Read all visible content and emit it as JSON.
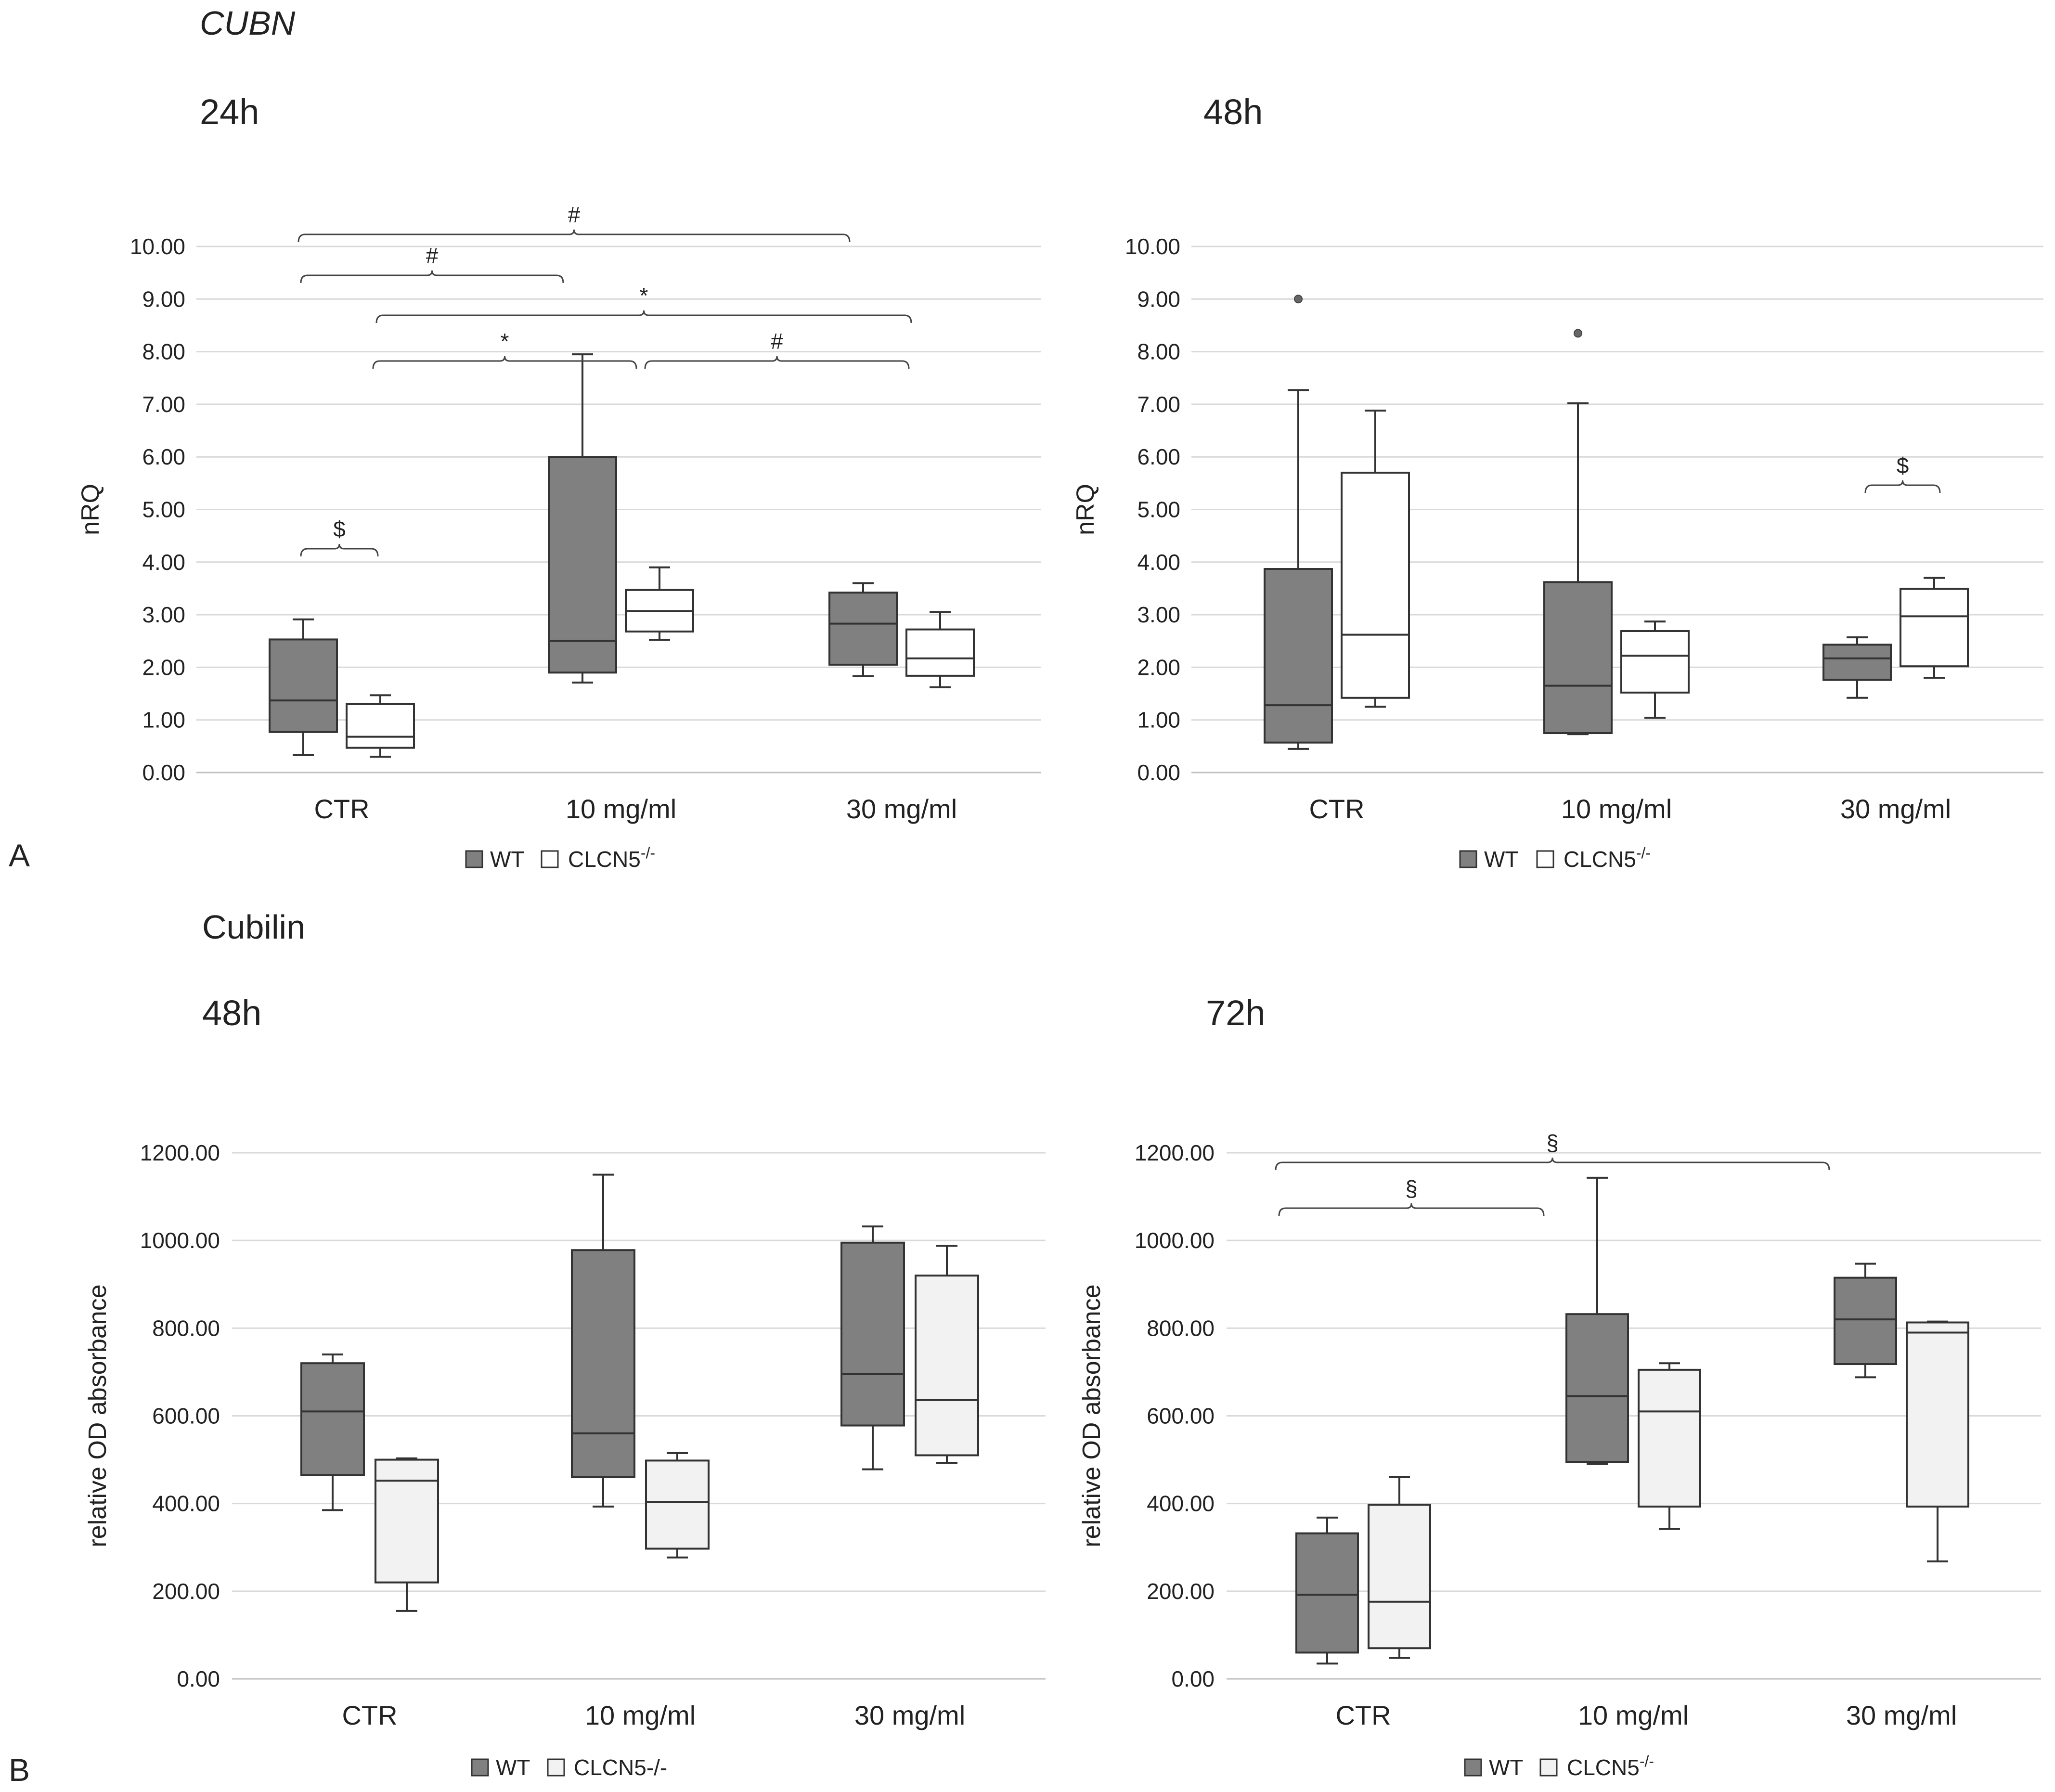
{
  "sections": [
    {
      "label": "A",
      "title": "CUBN",
      "title_italic": true
    },
    {
      "label": "B",
      "title": "Cubilin",
      "title_italic": false
    }
  ],
  "legend": {
    "wt_label": "WT",
    "ko_label_A": "CLCN5",
    "ko_superscript_A": "-/-",
    "ko_label_B_left": "CLCN5-/-",
    "ko_label_B_right": "CLCN5",
    "ko_superscript_B_right": "-/-"
  },
  "colors": {
    "wt_fill": "#808080",
    "ko_fill_A": "#ffffff",
    "ko_fill_B": "#f2f2f2",
    "box_stroke": "#333333",
    "gridline": "#d9d9d9"
  },
  "chart_data": [
    {
      "id": "A-24h",
      "type": "boxplot",
      "title": "24h",
      "ylabel": "nRQ",
      "ylim": [
        0,
        10
      ],
      "yticks": [
        "0.00",
        "1.00",
        "2.00",
        "3.00",
        "4.00",
        "5.00",
        "6.00",
        "7.00",
        "8.00",
        "9.00",
        "10.00"
      ],
      "categories": [
        "CTR",
        "10 mg/ml",
        "30 mg/ml"
      ],
      "series": [
        {
          "name": "WT",
          "boxes": [
            {
              "min": 0.33,
              "q1": 0.77,
              "median": 1.37,
              "q3": 2.53,
              "max": 2.91,
              "outliers": []
            },
            {
              "min": 1.71,
              "q1": 1.9,
              "median": 2.5,
              "q3": 6.0,
              "max": 7.95,
              "outliers": []
            },
            {
              "min": 1.83,
              "q1": 2.05,
              "median": 2.83,
              "q3": 3.42,
              "max": 3.6,
              "outliers": []
            }
          ]
        },
        {
          "name": "CLCN5-/-",
          "boxes": [
            {
              "min": 0.3,
              "q1": 0.47,
              "median": 0.68,
              "q3": 1.3,
              "max": 1.47,
              "outliers": []
            },
            {
              "min": 2.52,
              "q1": 2.68,
              "median": 3.07,
              "q3": 3.47,
              "max": 3.9,
              "outliers": []
            },
            {
              "min": 1.62,
              "q1": 1.84,
              "median": 2.17,
              "q3": 2.72,
              "max": 3.05,
              "outliers": []
            }
          ]
        }
      ],
      "significance": [
        {
          "symbol": "#",
          "from": "CTR WT",
          "to": "30 mg/ml WT"
        },
        {
          "symbol": "#",
          "from": "CTR WT",
          "to": "10 mg/ml WT"
        },
        {
          "symbol": "*",
          "from": "CTR CLCN5-/-",
          "to": "30 mg/ml CLCN5-/-"
        },
        {
          "symbol": "*",
          "from": "CTR CLCN5-/-",
          "to": "10 mg/ml CLCN5-/-"
        },
        {
          "symbol": "#",
          "from": "10 mg/ml CLCN5-/-",
          "to": "30 mg/ml CLCN5-/-"
        },
        {
          "symbol": "$",
          "from": "CTR WT",
          "to": "CTR CLCN5-/-"
        }
      ]
    },
    {
      "id": "A-48h",
      "type": "boxplot",
      "title": "48h",
      "ylabel": "nRQ",
      "ylim": [
        0,
        10
      ],
      "yticks": [
        "0.00",
        "1.00",
        "2.00",
        "3.00",
        "4.00",
        "5.00",
        "6.00",
        "7.00",
        "8.00",
        "9.00",
        "10.00"
      ],
      "categories": [
        "CTR",
        "10 mg/ml",
        "30 mg/ml"
      ],
      "series": [
        {
          "name": "WT",
          "boxes": [
            {
              "min": 0.45,
              "q1": 0.57,
              "median": 1.28,
              "q3": 3.87,
              "max": 7.27,
              "outliers": [
                9.0
              ]
            },
            {
              "min": 0.73,
              "q1": 0.75,
              "median": 1.65,
              "q3": 3.62,
              "max": 7.02,
              "outliers": [
                8.35
              ]
            },
            {
              "min": 1.42,
              "q1": 1.76,
              "median": 2.17,
              "q3": 2.43,
              "max": 2.57,
              "outliers": []
            }
          ]
        },
        {
          "name": "CLCN5-/-",
          "boxes": [
            {
              "min": 1.25,
              "q1": 1.42,
              "median": 2.62,
              "q3": 5.7,
              "max": 6.88,
              "outliers": []
            },
            {
              "min": 1.04,
              "q1": 1.52,
              "median": 2.22,
              "q3": 2.69,
              "max": 2.87,
              "outliers": []
            },
            {
              "min": 1.8,
              "q1": 2.02,
              "median": 2.97,
              "q3": 3.49,
              "max": 3.7,
              "outliers": []
            }
          ]
        }
      ],
      "significance": [
        {
          "symbol": "$",
          "from": "30 mg/ml WT",
          "to": "30 mg/ml CLCN5-/-"
        }
      ]
    },
    {
      "id": "B-48h",
      "type": "boxplot",
      "title": "48h",
      "ylabel": "relative OD absorbance",
      "ylim": [
        0,
        1200
      ],
      "yticks": [
        "0.00",
        "200.00",
        "400.00",
        "600.00",
        "800.00",
        "1000.00",
        "1200.00"
      ],
      "categories": [
        "CTR",
        "10 mg/ml",
        "30 mg/ml"
      ],
      "series": [
        {
          "name": "WT",
          "boxes": [
            {
              "min": 385,
              "q1": 465,
              "median": 610,
              "q3": 720,
              "max": 740,
              "outliers": []
            },
            {
              "min": 393,
              "q1": 460,
              "median": 560,
              "q3": 978,
              "max": 1150,
              "outliers": []
            },
            {
              "min": 478,
              "q1": 578,
              "median": 695,
              "q3": 995,
              "max": 1032,
              "outliers": []
            }
          ]
        },
        {
          "name": "CLCN5-/-",
          "boxes": [
            {
              "min": 155,
              "q1": 220,
              "median": 452,
              "q3": 500,
              "max": 503,
              "outliers": []
            },
            {
              "min": 277,
              "q1": 297,
              "median": 403,
              "q3": 498,
              "max": 515,
              "outliers": []
            },
            {
              "min": 493,
              "q1": 510,
              "median": 636,
              "q3": 920,
              "max": 988,
              "outliers": []
            }
          ]
        }
      ],
      "significance": []
    },
    {
      "id": "B-72h",
      "type": "boxplot",
      "title": "72h",
      "ylabel": "relative OD absorbance",
      "ylim": [
        0,
        1200
      ],
      "yticks": [
        "0.00",
        "200.00",
        "400.00",
        "600.00",
        "800.00",
        "1000.00",
        "1200.00"
      ],
      "categories": [
        "CTR",
        "10 mg/ml",
        "30 mg/ml"
      ],
      "series": [
        {
          "name": "WT",
          "boxes": [
            {
              "min": 35,
              "q1": 60,
              "median": 192,
              "q3": 332,
              "max": 368,
              "outliers": []
            },
            {
              "min": 490,
              "q1": 495,
              "median": 645,
              "q3": 832,
              "max": 1143,
              "outliers": []
            },
            {
              "min": 688,
              "q1": 718,
              "median": 820,
              "q3": 915,
              "max": 947,
              "outliers": []
            }
          ]
        },
        {
          "name": "CLCN5-/-",
          "boxes": [
            {
              "min": 48,
              "q1": 70,
              "median": 176,
              "q3": 397,
              "max": 460,
              "outliers": []
            },
            {
              "min": 342,
              "q1": 393,
              "median": 610,
              "q3": 705,
              "max": 720,
              "outliers": []
            },
            {
              "min": 268,
              "q1": 393,
              "median": 790,
              "q3": 813,
              "max": 815,
              "outliers": []
            }
          ]
        }
      ],
      "significance": [
        {
          "symbol": "§",
          "from": "CTR WT",
          "to": "30 mg/ml WT"
        },
        {
          "symbol": "§",
          "from": "CTR WT",
          "to": "10 mg/ml WT"
        }
      ]
    }
  ]
}
